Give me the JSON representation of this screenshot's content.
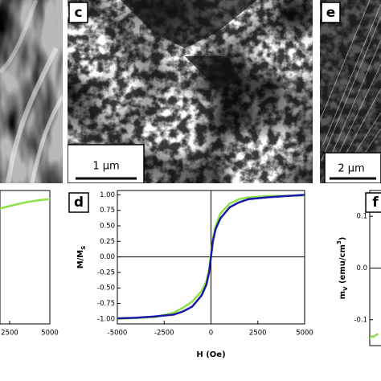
{
  "panels": {
    "c": {
      "label": "c",
      "scale_bar": "1 μm"
    },
    "e": {
      "label": "e",
      "scale_bar": "2 μm"
    }
  },
  "chart_data": [
    {
      "type": "line",
      "xlim": [
        1900,
        5000
      ],
      "ylim": [
        -1.08,
        1.07
      ],
      "xticks": [
        2500,
        5000
      ],
      "series": [
        {
          "color": "#8ee04a",
          "x": [
            1900,
            2500,
            3000,
            3500,
            4000,
            4500,
            5000
          ],
          "values": [
            0.78,
            0.82,
            0.85,
            0.88,
            0.9,
            0.92,
            0.93
          ]
        }
      ]
    },
    {
      "type": "line",
      "panel": "d",
      "xlabel": "H (Oe)",
      "ylabel": [
        "M/M",
        "S"
      ],
      "xlim": [
        -5000,
        5000
      ],
      "ylim": [
        -1.08,
        1.07
      ],
      "xticks": [
        -5000,
        -2500,
        0,
        2500,
        5000
      ],
      "yticks": [
        {
          "value": -1.0,
          "label": "-1.00"
        },
        -0.75,
        {
          "value": -0.5,
          "label": "-0.50"
        },
        -0.25,
        {
          "value": 0,
          "label": "0.00"
        },
        0.25,
        {
          "value": 0.5,
          "label": "0.50"
        },
        0.75,
        {
          "value": 1.0,
          "label": "1.00"
        }
      ],
      "zero_lines": true,
      "series": [
        {
          "color": "#8ee04a",
          "x": [
            -5000,
            -3000,
            -2000,
            -1500,
            -1000,
            -500,
            -250,
            -100,
            0,
            100,
            250,
            500,
            1000,
            1500,
            2000,
            3000,
            5000
          ],
          "values": [
            -1.0,
            -0.97,
            -0.9,
            -0.82,
            -0.72,
            -0.55,
            -0.4,
            -0.2,
            0.05,
            0.3,
            0.5,
            0.7,
            0.86,
            0.93,
            0.96,
            0.98,
            0.99
          ]
        },
        {
          "color": "#1a1aa8",
          "x": [
            -5000,
            -4000,
            -3000,
            -2000,
            -1500,
            -1000,
            -500,
            -250,
            -100,
            0,
            100,
            250,
            500,
            1000,
            1500,
            2000,
            3000,
            4000,
            5000
          ],
          "values": [
            -0.99,
            -0.98,
            -0.96,
            -0.93,
            -0.88,
            -0.8,
            -0.62,
            -0.45,
            -0.25,
            0.0,
            0.25,
            0.45,
            0.62,
            0.8,
            0.88,
            0.93,
            0.96,
            0.98,
            1.0
          ]
        }
      ]
    },
    {
      "type": "line",
      "panel": "f",
      "ylabel": [
        "m",
        "V",
        " (emu/cm",
        "3",
        ")"
      ],
      "xlim": [
        -5000,
        5000
      ],
      "ylim": [
        -0.15,
        0.15
      ],
      "yticks": [
        -0.1,
        {
          "value": 0,
          "label": "0.0"
        },
        0.1
      ],
      "zero_lines": true,
      "series": [
        {
          "color": "#8ee04a",
          "x": [
            -5000,
            -4900,
            -4800,
            -4700,
            -4600
          ],
          "values": [
            -0.135,
            -0.132,
            -0.133,
            -0.13,
            -0.128
          ]
        }
      ]
    }
  ]
}
